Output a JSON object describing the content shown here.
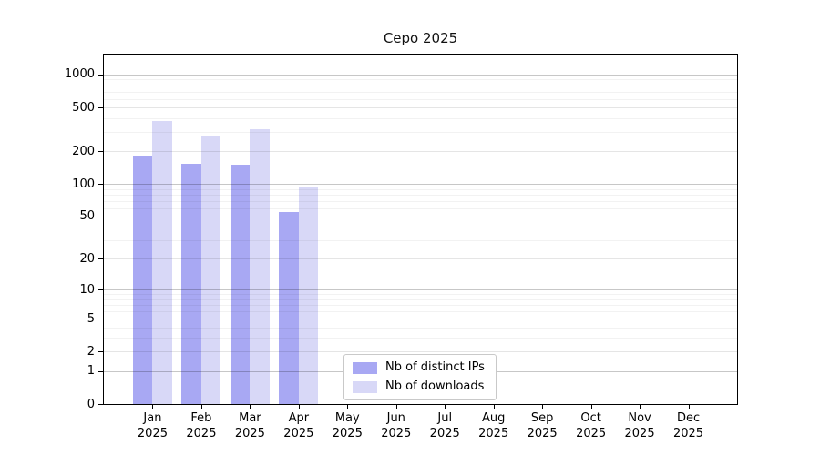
{
  "chart_data": {
    "type": "bar",
    "title": "Cepo 2025",
    "months": [
      "Jan",
      "Feb",
      "Mar",
      "Apr",
      "May",
      "Jun",
      "Jul",
      "Aug",
      "Sep",
      "Oct",
      "Nov",
      "Dec"
    ],
    "year_label": "2025",
    "series": [
      {
        "key": "distinct-ips",
        "name": "Nb of distinct IPs",
        "color": "#a8a8f3",
        "values": [
          181,
          153,
          150,
          55,
          0,
          0,
          0,
          0,
          0,
          0,
          0,
          0
        ]
      },
      {
        "key": "downloads",
        "name": "Nb of downloads",
        "color": "#d8d8f7",
        "values": [
          375,
          270,
          320,
          95,
          0,
          0,
          0,
          0,
          0,
          0,
          0,
          0
        ]
      }
    ],
    "y_scale": "log1p",
    "ylim": [
      0,
      1520
    ],
    "y_tick_labels": [
      0,
      1,
      2,
      5,
      10,
      20,
      50,
      100,
      200,
      500,
      1000
    ],
    "y_gridlines_power": [
      1,
      10,
      100,
      1000
    ],
    "y_gridlines_submajor": [
      2,
      5,
      20,
      50,
      200,
      500
    ],
    "y_gridlines_minor": [
      3,
      4,
      6,
      7,
      8,
      9,
      30,
      40,
      60,
      70,
      80,
      90,
      300,
      400,
      600,
      700,
      800,
      900
    ],
    "grid": true,
    "legend_position": "lower-center",
    "colors": {
      "axis": "#000000",
      "background": "#ffffff",
      "text": "#000000",
      "grid_power": "rgba(0,0,0,0.22)",
      "grid_submajor": "rgba(0,0,0,0.10)",
      "grid_minor": "rgba(0,0,0,0.05)"
    }
  }
}
